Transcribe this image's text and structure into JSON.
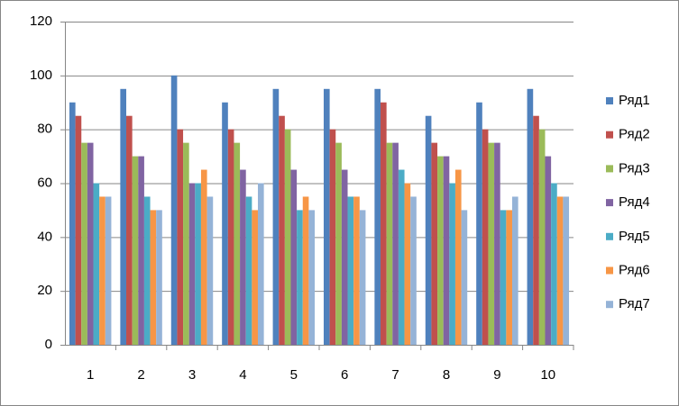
{
  "chart_data": {
    "type": "bar",
    "categories": [
      "1",
      "2",
      "3",
      "4",
      "5",
      "6",
      "7",
      "8",
      "9",
      "10"
    ],
    "series": [
      {
        "name": "Ряд1",
        "color": "#4f81bd",
        "values": [
          90,
          95,
          100,
          90,
          95,
          95,
          95,
          85,
          90,
          95
        ]
      },
      {
        "name": "Ряд2",
        "color": "#c0504d",
        "values": [
          85,
          85,
          80,
          80,
          85,
          80,
          90,
          75,
          80,
          85
        ]
      },
      {
        "name": "Ряд3",
        "color": "#9bbb59",
        "values": [
          75,
          70,
          75,
          75,
          80,
          75,
          75,
          70,
          75,
          80
        ]
      },
      {
        "name": "Ряд4",
        "color": "#8064a2",
        "values": [
          75,
          70,
          60,
          65,
          65,
          65,
          75,
          70,
          75,
          70
        ]
      },
      {
        "name": "Ряд5",
        "color": "#4bacc6",
        "values": [
          60,
          55,
          60,
          55,
          50,
          55,
          65,
          60,
          50,
          60
        ]
      },
      {
        "name": "Ряд6",
        "color": "#f79646",
        "values": [
          55,
          50,
          65,
          50,
          55,
          55,
          60,
          65,
          50,
          55
        ]
      },
      {
        "name": "Ряд7",
        "color": "#95b3d7",
        "values": [
          55,
          50,
          55,
          60,
          50,
          50,
          55,
          50,
          55,
          55
        ]
      }
    ],
    "ylim": [
      0,
      120
    ],
    "yticks": [
      0,
      20,
      40,
      60,
      80,
      100,
      120
    ],
    "grid": true,
    "legend": "right"
  }
}
